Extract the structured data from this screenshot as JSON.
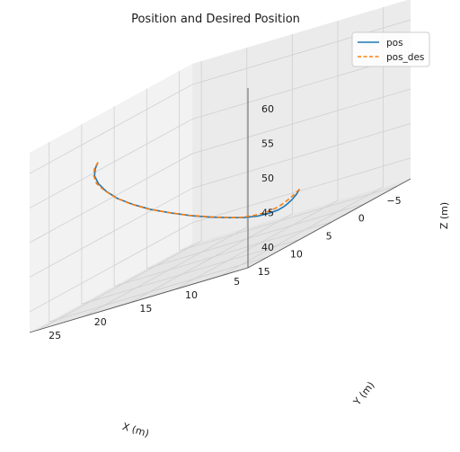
{
  "chart_data": {
    "type": "line",
    "projection": "3d",
    "title": "Position and Desired Position",
    "xlabel": "X (m)",
    "ylabel": "Y (m)",
    "zlabel": "Z (m)",
    "xlim": [
      -7,
      18
    ],
    "ylim": [
      2,
      26
    ],
    "zlim": [
      37,
      63
    ],
    "x_ticks": [
      "−5",
      "0",
      "5",
      "10",
      "15"
    ],
    "y_ticks": [
      "5",
      "10",
      "15",
      "20",
      "25"
    ],
    "z_ticks": [
      "40",
      "45",
      "50",
      "55",
      "60"
    ],
    "grid": true,
    "legend": "top-right",
    "series": [
      {
        "name": "pos",
        "color": "#1f77b4",
        "style": "solid",
        "x": [
          -6,
          -4.7,
          -3.2,
          -1.8,
          -0.6,
          0.8,
          2.4,
          4.2,
          6.0,
          7.6,
          9.2,
          10.6,
          11.7,
          12.6,
          13.1,
          13.3,
          13.1,
          12.6,
          11.8,
          10.7,
          9.6
        ],
        "y": [
          13.5,
          12.9,
          12.3,
          11.8,
          11.4,
          11.0,
          10.8,
          10.8,
          11.0,
          11.5,
          12.3,
          13.5,
          14.9,
          16.5,
          18.1,
          19.7,
          21.1,
          22.3,
          23.3,
          24.0,
          24.5
        ],
        "z": [
          40.5,
          40.2,
          40.0,
          39.9,
          39.9,
          40.0,
          40.3,
          40.8,
          41.6,
          42.6,
          43.8,
          45.2,
          46.7,
          48.3,
          49.9,
          51.5,
          53.0,
          54.3,
          55.4,
          56.2,
          56.7
        ]
      },
      {
        "name": "pos_des",
        "color": "#ff7f0e",
        "style": "dashed",
        "x": [
          -6,
          -4.7,
          -3.2,
          -1.8,
          -0.5,
          1.0,
          2.6,
          4.4,
          6.2,
          7.8,
          9.3,
          10.7,
          11.8,
          12.7,
          13.2,
          13.3,
          13.1,
          12.6,
          11.8,
          10.7,
          9.6
        ],
        "y": [
          13.5,
          13.0,
          12.5,
          12.0,
          11.6,
          11.2,
          11.0,
          11.0,
          11.2,
          11.7,
          12.5,
          13.7,
          15.1,
          16.7,
          18.3,
          19.9,
          21.3,
          22.5,
          23.4,
          24.1,
          24.5
        ],
        "z": [
          40.5,
          40.4,
          40.3,
          40.3,
          40.3,
          40.4,
          40.6,
          41.1,
          41.8,
          42.8,
          44.0,
          45.4,
          46.9,
          48.5,
          50.1,
          51.7,
          53.2,
          54.4,
          55.5,
          56.2,
          56.7
        ]
      }
    ]
  },
  "colors": {
    "pane_left": "#f2f2f2",
    "pane_right": "#ebebeb",
    "pane_floor": "#e5e5e5",
    "grid": "#d0d0d0"
  }
}
